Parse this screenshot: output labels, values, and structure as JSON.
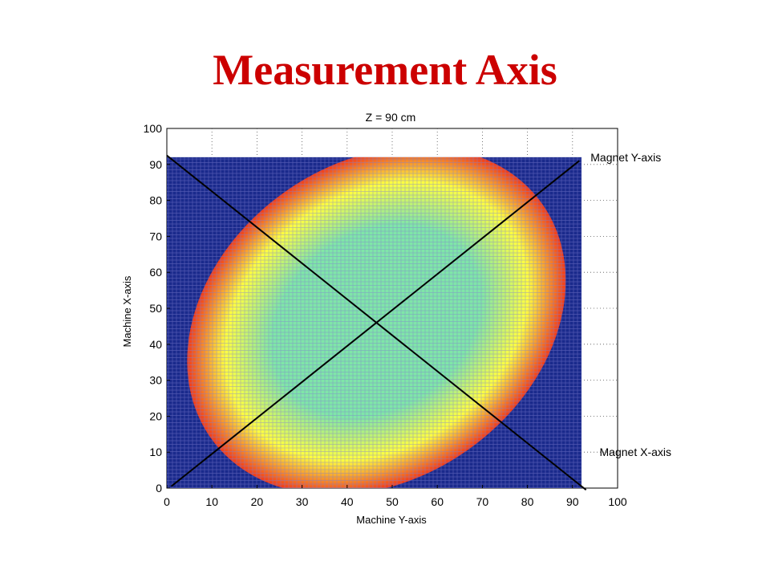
{
  "slide": {
    "title": "Measurement Axis"
  },
  "chart_data": {
    "type": "heatmap",
    "title": "Z = 90 cm",
    "xlabel": "Machine Y-axis",
    "ylabel": "Machine X-axis",
    "xlim": [
      0,
      100
    ],
    "ylim": [
      0,
      100
    ],
    "x_ticks": [
      0,
      10,
      20,
      30,
      40,
      50,
      60,
      70,
      80,
      90,
      100
    ],
    "y_ticks": [
      0,
      10,
      20,
      30,
      40,
      50,
      60,
      70,
      80,
      90,
      100
    ],
    "grid": true,
    "mesh_extent": {
      "x": [
        0,
        92
      ],
      "y": [
        0,
        92
      ]
    },
    "field_region": {
      "center": [
        46.5,
        46.5
      ],
      "rx": 45,
      "ry": 44,
      "rotation_deg": -35
    },
    "colors": {
      "background": "#1a2a8c",
      "mesh_line": "#7f7fd0",
      "field_center": "#7fe6a8",
      "field_mid": "#ffff40",
      "field_edge": "#f03a1a",
      "axis_line": "#000000"
    },
    "lines": [
      {
        "name": "Magnet Y-axis",
        "x": [
          1,
          91.5
        ],
        "y": [
          0.5,
          91
        ]
      },
      {
        "name": "Magnet X-axis",
        "x": [
          0,
          93
        ],
        "y": [
          92.5,
          -0.5
        ]
      }
    ],
    "annotations": [
      {
        "text": "Magnet Y-axis",
        "x": 94,
        "y": 92
      },
      {
        "text": "Magnet X-axis",
        "x": 96,
        "y": 10
      }
    ]
  }
}
